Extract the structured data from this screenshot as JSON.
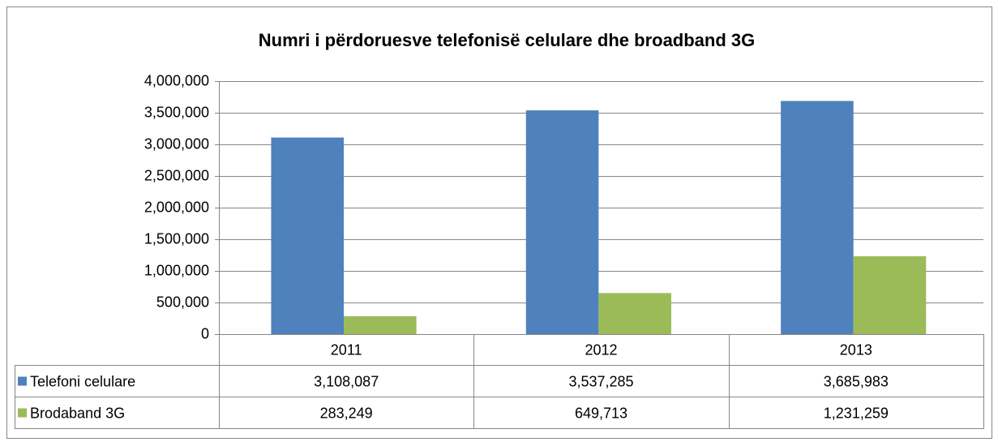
{
  "chart_data": {
    "type": "bar",
    "title": "Numri i përdoruesve telefonisë celulare dhe broadband 3G",
    "categories": [
      "2011",
      "2012",
      "2013"
    ],
    "series": [
      {
        "name": "Telefoni celulare",
        "color": "#4f81bd",
        "values": [
          3108087,
          3537285,
          3685983
        ],
        "value_labels": [
          "3,108,087",
          "3,537,285",
          "3,685,983"
        ]
      },
      {
        "name": "Brodaband 3G",
        "color": "#9bbb59",
        "values": [
          283249,
          649713,
          1231259
        ],
        "value_labels": [
          "283,249",
          "649,713",
          "1,231,259"
        ]
      }
    ],
    "ylim": [
      0,
      4000000
    ],
    "yticks": [
      0,
      {
        "value": 500000,
        "label": "500,000"
      },
      {
        "value": 1000000,
        "label": "1,000,000"
      },
      {
        "value": 1500000,
        "label": "1,500,000"
      },
      {
        "value": 2000000,
        "label": "2,000,000"
      },
      {
        "value": 2500000,
        "label": "2,500,000"
      },
      {
        "value": 3000000,
        "label": "3,000,000"
      },
      {
        "value": 3500000,
        "label": "3,500,000"
      },
      {
        "value": 4000000,
        "label": "4,000,000"
      }
    ],
    "grid": true
  }
}
